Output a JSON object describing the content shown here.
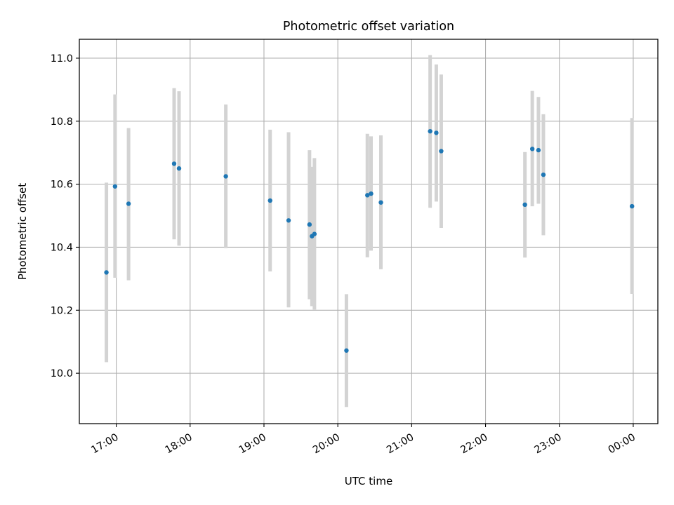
{
  "chart_data": {
    "type": "scatter",
    "title": "Photometric offset variation",
    "xlabel": "UTC time",
    "ylabel": "Photometric offset",
    "xlim": [
      "16:30",
      "00:20"
    ],
    "ylim": [
      9.84,
      11.06
    ],
    "grid": true,
    "x_ticks": [
      "17:00",
      "18:00",
      "19:00",
      "20:00",
      "21:00",
      "22:00",
      "23:00",
      "00:00"
    ],
    "y_ticks": [
      "10.0",
      "10.2",
      "10.4",
      "10.6",
      "10.8",
      "11.0"
    ],
    "errorbar_color": "#d3d3d3",
    "marker_color": "#1f77b4",
    "points": [
      {
        "x": "16:52",
        "y": 10.32,
        "yerr_low": 10.035,
        "yerr_high": 10.605
      },
      {
        "x": "16:59",
        "y": 10.593,
        "yerr_low": 10.303,
        "yerr_high": 10.885
      },
      {
        "x": "17:10",
        "y": 10.538,
        "yerr_low": 10.295,
        "yerr_high": 10.778
      },
      {
        "x": "17:47",
        "y": 10.665,
        "yerr_low": 10.425,
        "yerr_high": 10.905
      },
      {
        "x": "17:51",
        "y": 10.65,
        "yerr_low": 10.405,
        "yerr_high": 10.895
      },
      {
        "x": "18:29",
        "y": 10.625,
        "yerr_low": 10.397,
        "yerr_high": 10.853
      },
      {
        "x": "19:05",
        "y": 10.548,
        "yerr_low": 10.323,
        "yerr_high": 10.773
      },
      {
        "x": "19:20",
        "y": 10.485,
        "yerr_low": 10.209,
        "yerr_high": 10.765
      },
      {
        "x": "19:37",
        "y": 10.472,
        "yerr_low": 10.235,
        "yerr_high": 10.708
      },
      {
        "x": "19:39",
        "y": 10.435,
        "yerr_low": 10.213,
        "yerr_high": 10.655
      },
      {
        "x": "19:41",
        "y": 10.442,
        "yerr_low": 10.202,
        "yerr_high": 10.683
      },
      {
        "x": "20:07",
        "y": 10.072,
        "yerr_low": 9.893,
        "yerr_high": 10.251
      },
      {
        "x": "20:24",
        "y": 10.565,
        "yerr_low": 10.368,
        "yerr_high": 10.76
      },
      {
        "x": "20:27",
        "y": 10.57,
        "yerr_low": 10.389,
        "yerr_high": 10.752
      },
      {
        "x": "20:35",
        "y": 10.542,
        "yerr_low": 10.33,
        "yerr_high": 10.755
      },
      {
        "x": "21:15",
        "y": 10.768,
        "yerr_low": 10.525,
        "yerr_high": 11.01
      },
      {
        "x": "21:20",
        "y": 10.763,
        "yerr_low": 10.545,
        "yerr_high": 10.98
      },
      {
        "x": "21:24",
        "y": 10.705,
        "yerr_low": 10.461,
        "yerr_high": 10.948
      },
      {
        "x": "22:32",
        "y": 10.535,
        "yerr_low": 10.367,
        "yerr_high": 10.702
      },
      {
        "x": "22:38",
        "y": 10.712,
        "yerr_low": 10.53,
        "yerr_high": 10.896
      },
      {
        "x": "22:43",
        "y": 10.708,
        "yerr_low": 10.538,
        "yerr_high": 10.877
      },
      {
        "x": "22:47",
        "y": 10.63,
        "yerr_low": 10.438,
        "yerr_high": 10.822
      },
      {
        "x": "23:59",
        "y": 10.53,
        "yerr_low": 10.252,
        "yerr_high": 10.81
      }
    ]
  }
}
